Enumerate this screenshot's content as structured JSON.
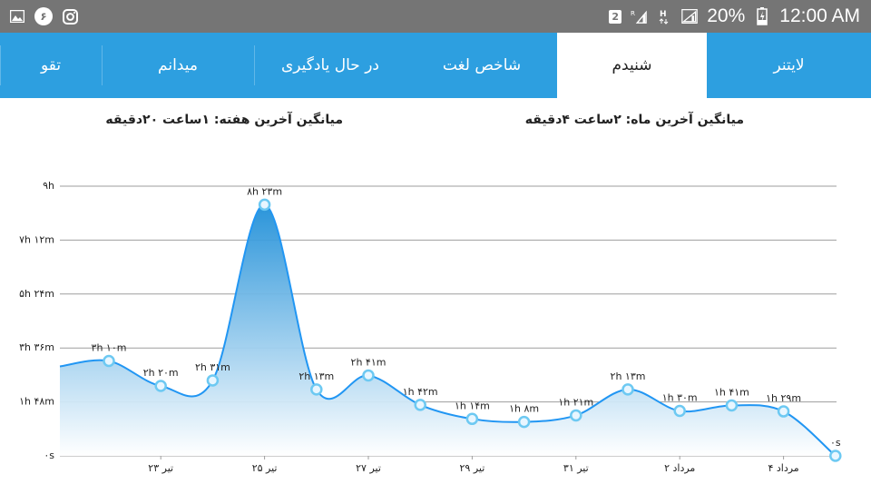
{
  "status_bar": {
    "notification_badge": "۶",
    "sim_badge": "2",
    "network_r": "R",
    "network_h": "H",
    "battery": "20%",
    "time": "12:00 AM"
  },
  "tabs": [
    {
      "label": "لایتنر",
      "active": false
    },
    {
      "label": "شنیدم",
      "active": true
    },
    {
      "label": "شاخص لغت",
      "active": false
    },
    {
      "label": "در حال یادگیری",
      "active": false
    },
    {
      "label": "میدانم",
      "active": false
    },
    {
      "label": "تقو",
      "active": false
    }
  ],
  "summary": {
    "month_avg": "میانگین آخرین ماه: ۲ساعت  ۴دقیقه",
    "week_avg": "میانگین آخرین هفته: ۱ساعت  ۲۰دقیقه"
  },
  "colors": {
    "tab_bar": "#2d9fe0",
    "series_line": "#2196f3",
    "point_fill": "#e8f6ff",
    "point_stroke": "#6dc9f2",
    "grid": "#9e9e9e"
  },
  "chart_data": {
    "type": "area",
    "y_unit": "minutes",
    "ylim": [
      0,
      540
    ],
    "y_ticks": [
      {
        "value": 0,
        "label": "۰s"
      },
      {
        "value": 108,
        "label": "۱h ۴۸m"
      },
      {
        "value": 216,
        "label": "۳h ۳۶m"
      },
      {
        "value": 324,
        "label": "۵h ۲۴m"
      },
      {
        "value": 432,
        "label": "۷h ۱۲m"
      },
      {
        "value": 540,
        "label": "۹h"
      }
    ],
    "x_ticks": [
      "۲۳ تیر",
      "۲۵ تیر",
      "۲۷ تیر",
      "۲۹ تیر",
      "۳۱ تیر",
      "۲ مرداد",
      "۴ مرداد"
    ],
    "points": [
      {
        "value": 190,
        "label": "۳h ۱۰m"
      },
      {
        "value": 140,
        "label": "۲h ۲۰m"
      },
      {
        "value": 151,
        "label": "۲h ۳۱m"
      },
      {
        "value": 503,
        "label": "۸h ۲۳m"
      },
      {
        "value": 133,
        "label": "۲h ۱۳m"
      },
      {
        "value": 161,
        "label": "۲h ۴۱m"
      },
      {
        "value": 102,
        "label": "۱h ۴۲m"
      },
      {
        "value": 74,
        "label": "۱h ۱۴m"
      },
      {
        "value": 68,
        "label": "۱h ۸m"
      },
      {
        "value": 81,
        "label": "۱h ۲۱m"
      },
      {
        "value": 133,
        "label": "۲h ۱۳m"
      },
      {
        "value": 90,
        "label": "۱h ۳۰m"
      },
      {
        "value": 101,
        "label": "۱h ۴۱m"
      },
      {
        "value": 89,
        "label": "۱h ۲۹m"
      },
      {
        "value": 0,
        "label": "۰s"
      }
    ]
  }
}
